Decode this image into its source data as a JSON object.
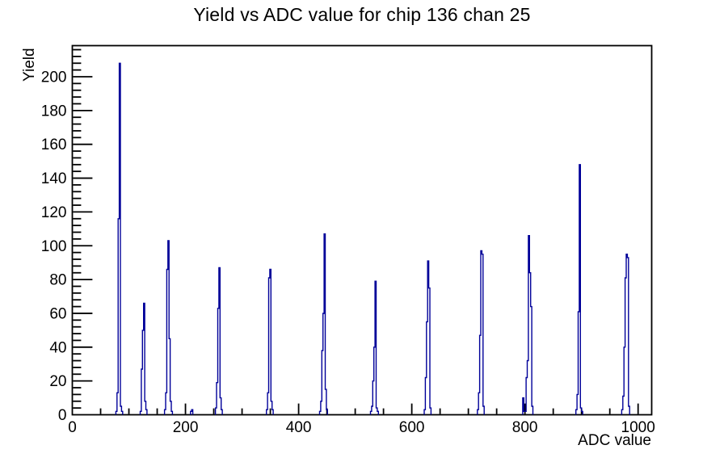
{
  "title": "Yield vs ADC value for chip 136 chan 25",
  "chart_data": {
    "type": "bar",
    "subtype": "root-histogram-outline",
    "title": "Yield vs ADC value for chip 136 chan 25",
    "xlabel": "ADC value",
    "ylabel": "Yield",
    "xlim": [
      0,
      1024
    ],
    "ylim": [
      0,
      218.4
    ],
    "grid": false,
    "legend_position": "none",
    "x_tick_labels": [
      "0",
      "200",
      "400",
      "600",
      "800",
      "1000"
    ],
    "x_major_ticks": [
      0,
      200,
      400,
      600,
      800,
      1000
    ],
    "x_minor_step": 50,
    "y_tick_labels": [
      "0",
      "20",
      "40",
      "60",
      "80",
      "100",
      "120",
      "140",
      "160",
      "180",
      "200"
    ],
    "y_major_ticks": [
      0,
      20,
      40,
      60,
      80,
      100,
      120,
      140,
      160,
      180,
      200
    ],
    "y_minor_step": 4,
    "bin_width_adc": 2,
    "line_color": "#000099",
    "axis_color": "#000000",
    "background_color": "#ffffff",
    "peaks": [
      {
        "adc": 84,
        "yield": 208
      },
      {
        "adc": 127,
        "yield": 66
      },
      {
        "adc": 170,
        "yield": 103
      },
      {
        "adc": 212,
        "yield": 3
      },
      {
        "adc": 260,
        "yield": 87
      },
      {
        "adc": 350,
        "yield": 86
      },
      {
        "adc": 446,
        "yield": 107
      },
      {
        "adc": 536,
        "yield": 79
      },
      {
        "adc": 629,
        "yield": 91
      },
      {
        "adc": 723,
        "yield": 97
      },
      {
        "adc": 807,
        "yield": 106
      },
      {
        "adc": 897,
        "yield": 148
      },
      {
        "adc": 980,
        "yield": 95
      }
    ],
    "clusters": [
      [
        [
          78,
          2
        ],
        [
          80,
          13
        ],
        [
          82,
          116
        ],
        [
          84,
          208
        ],
        [
          86,
          5
        ],
        [
          88,
          2
        ]
      ],
      [
        [
          121,
          2
        ],
        [
          123,
          27
        ],
        [
          125,
          50
        ],
        [
          127,
          66
        ],
        [
          129,
          8
        ],
        [
          131,
          3
        ]
      ],
      [
        [
          164,
          3
        ],
        [
          166,
          13
        ],
        [
          168,
          86
        ],
        [
          170,
          103
        ],
        [
          172,
          45
        ],
        [
          174,
          8
        ],
        [
          176,
          2
        ]
      ],
      [
        [
          210,
          2
        ],
        [
          212,
          3
        ]
      ],
      [
        [
          254,
          4
        ],
        [
          256,
          19
        ],
        [
          258,
          63
        ],
        [
          260,
          87
        ],
        [
          262,
          10
        ],
        [
          264,
          3
        ]
      ],
      [
        [
          344,
          3
        ],
        [
          346,
          13
        ],
        [
          348,
          81
        ],
        [
          350,
          86
        ],
        [
          352,
          8
        ],
        [
          354,
          3
        ]
      ],
      [
        [
          438,
          2
        ],
        [
          440,
          8
        ],
        [
          442,
          38
        ],
        [
          444,
          60
        ],
        [
          446,
          107
        ],
        [
          448,
          15
        ],
        [
          450,
          3
        ]
      ],
      [
        [
          528,
          2
        ],
        [
          530,
          5
        ],
        [
          532,
          20
        ],
        [
          534,
          40
        ],
        [
          536,
          79
        ],
        [
          538,
          4
        ],
        [
          540,
          2
        ]
      ],
      [
        [
          623,
          3
        ],
        [
          625,
          22
        ],
        [
          627,
          55
        ],
        [
          629,
          91
        ],
        [
          631,
          75
        ],
        [
          633,
          4
        ]
      ],
      [
        [
          717,
          3
        ],
        [
          719,
          13
        ],
        [
          721,
          47
        ],
        [
          723,
          97
        ],
        [
          725,
          95
        ],
        [
          727,
          5
        ]
      ],
      [
        [
          797,
          10
        ],
        [
          799,
          2
        ],
        [
          801,
          2
        ],
        [
          803,
          22
        ],
        [
          805,
          32
        ],
        [
          807,
          106
        ],
        [
          809,
          84
        ],
        [
          811,
          64
        ],
        [
          813,
          5
        ]
      ],
      [
        [
          891,
          3
        ],
        [
          893,
          12
        ],
        [
          895,
          61
        ],
        [
          897,
          148
        ],
        [
          899,
          4
        ],
        [
          901,
          2
        ]
      ],
      [
        [
          972,
          3
        ],
        [
          974,
          11
        ],
        [
          976,
          40
        ],
        [
          978,
          81
        ],
        [
          980,
          95
        ],
        [
          982,
          93
        ],
        [
          984,
          5
        ]
      ]
    ]
  }
}
